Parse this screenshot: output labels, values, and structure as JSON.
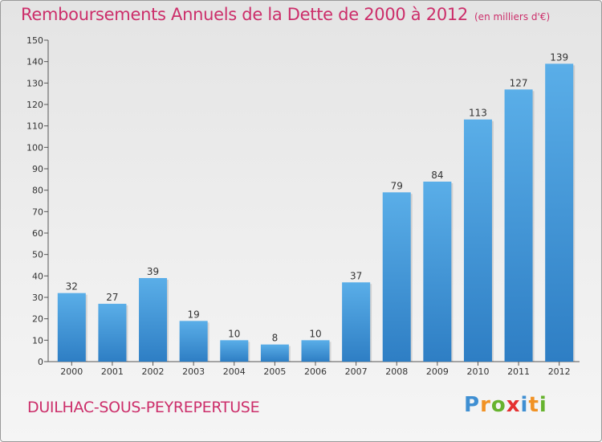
{
  "title": "Remboursements Annuels de la Dette de 2000 à 2012",
  "unit": "(en milliers d'€)",
  "commune": "DUILHAC-SOUS-PEYREPERTUSE",
  "logo": {
    "p": "P",
    "r": "r",
    "o": "o",
    "x": "x",
    "i": "i",
    "t": "t",
    "i2": "i"
  },
  "colors": {
    "title": "#cc2e6a",
    "bar_top": "#5aaee8",
    "bar_bottom": "#2e7ec4"
  },
  "chart_data": {
    "type": "bar",
    "categories": [
      "2000",
      "2001",
      "2002",
      "2003",
      "2004",
      "2005",
      "2006",
      "2007",
      "2008",
      "2009",
      "2010",
      "2011",
      "2012"
    ],
    "values": [
      32,
      27,
      39,
      19,
      10,
      8,
      10,
      37,
      79,
      84,
      113,
      127,
      139
    ],
    "ylim": [
      0,
      150
    ],
    "yticks": [
      0,
      10,
      20,
      30,
      40,
      50,
      60,
      70,
      80,
      90,
      100,
      110,
      120,
      130,
      140,
      150
    ],
    "grid": false,
    "data_labels": true
  }
}
